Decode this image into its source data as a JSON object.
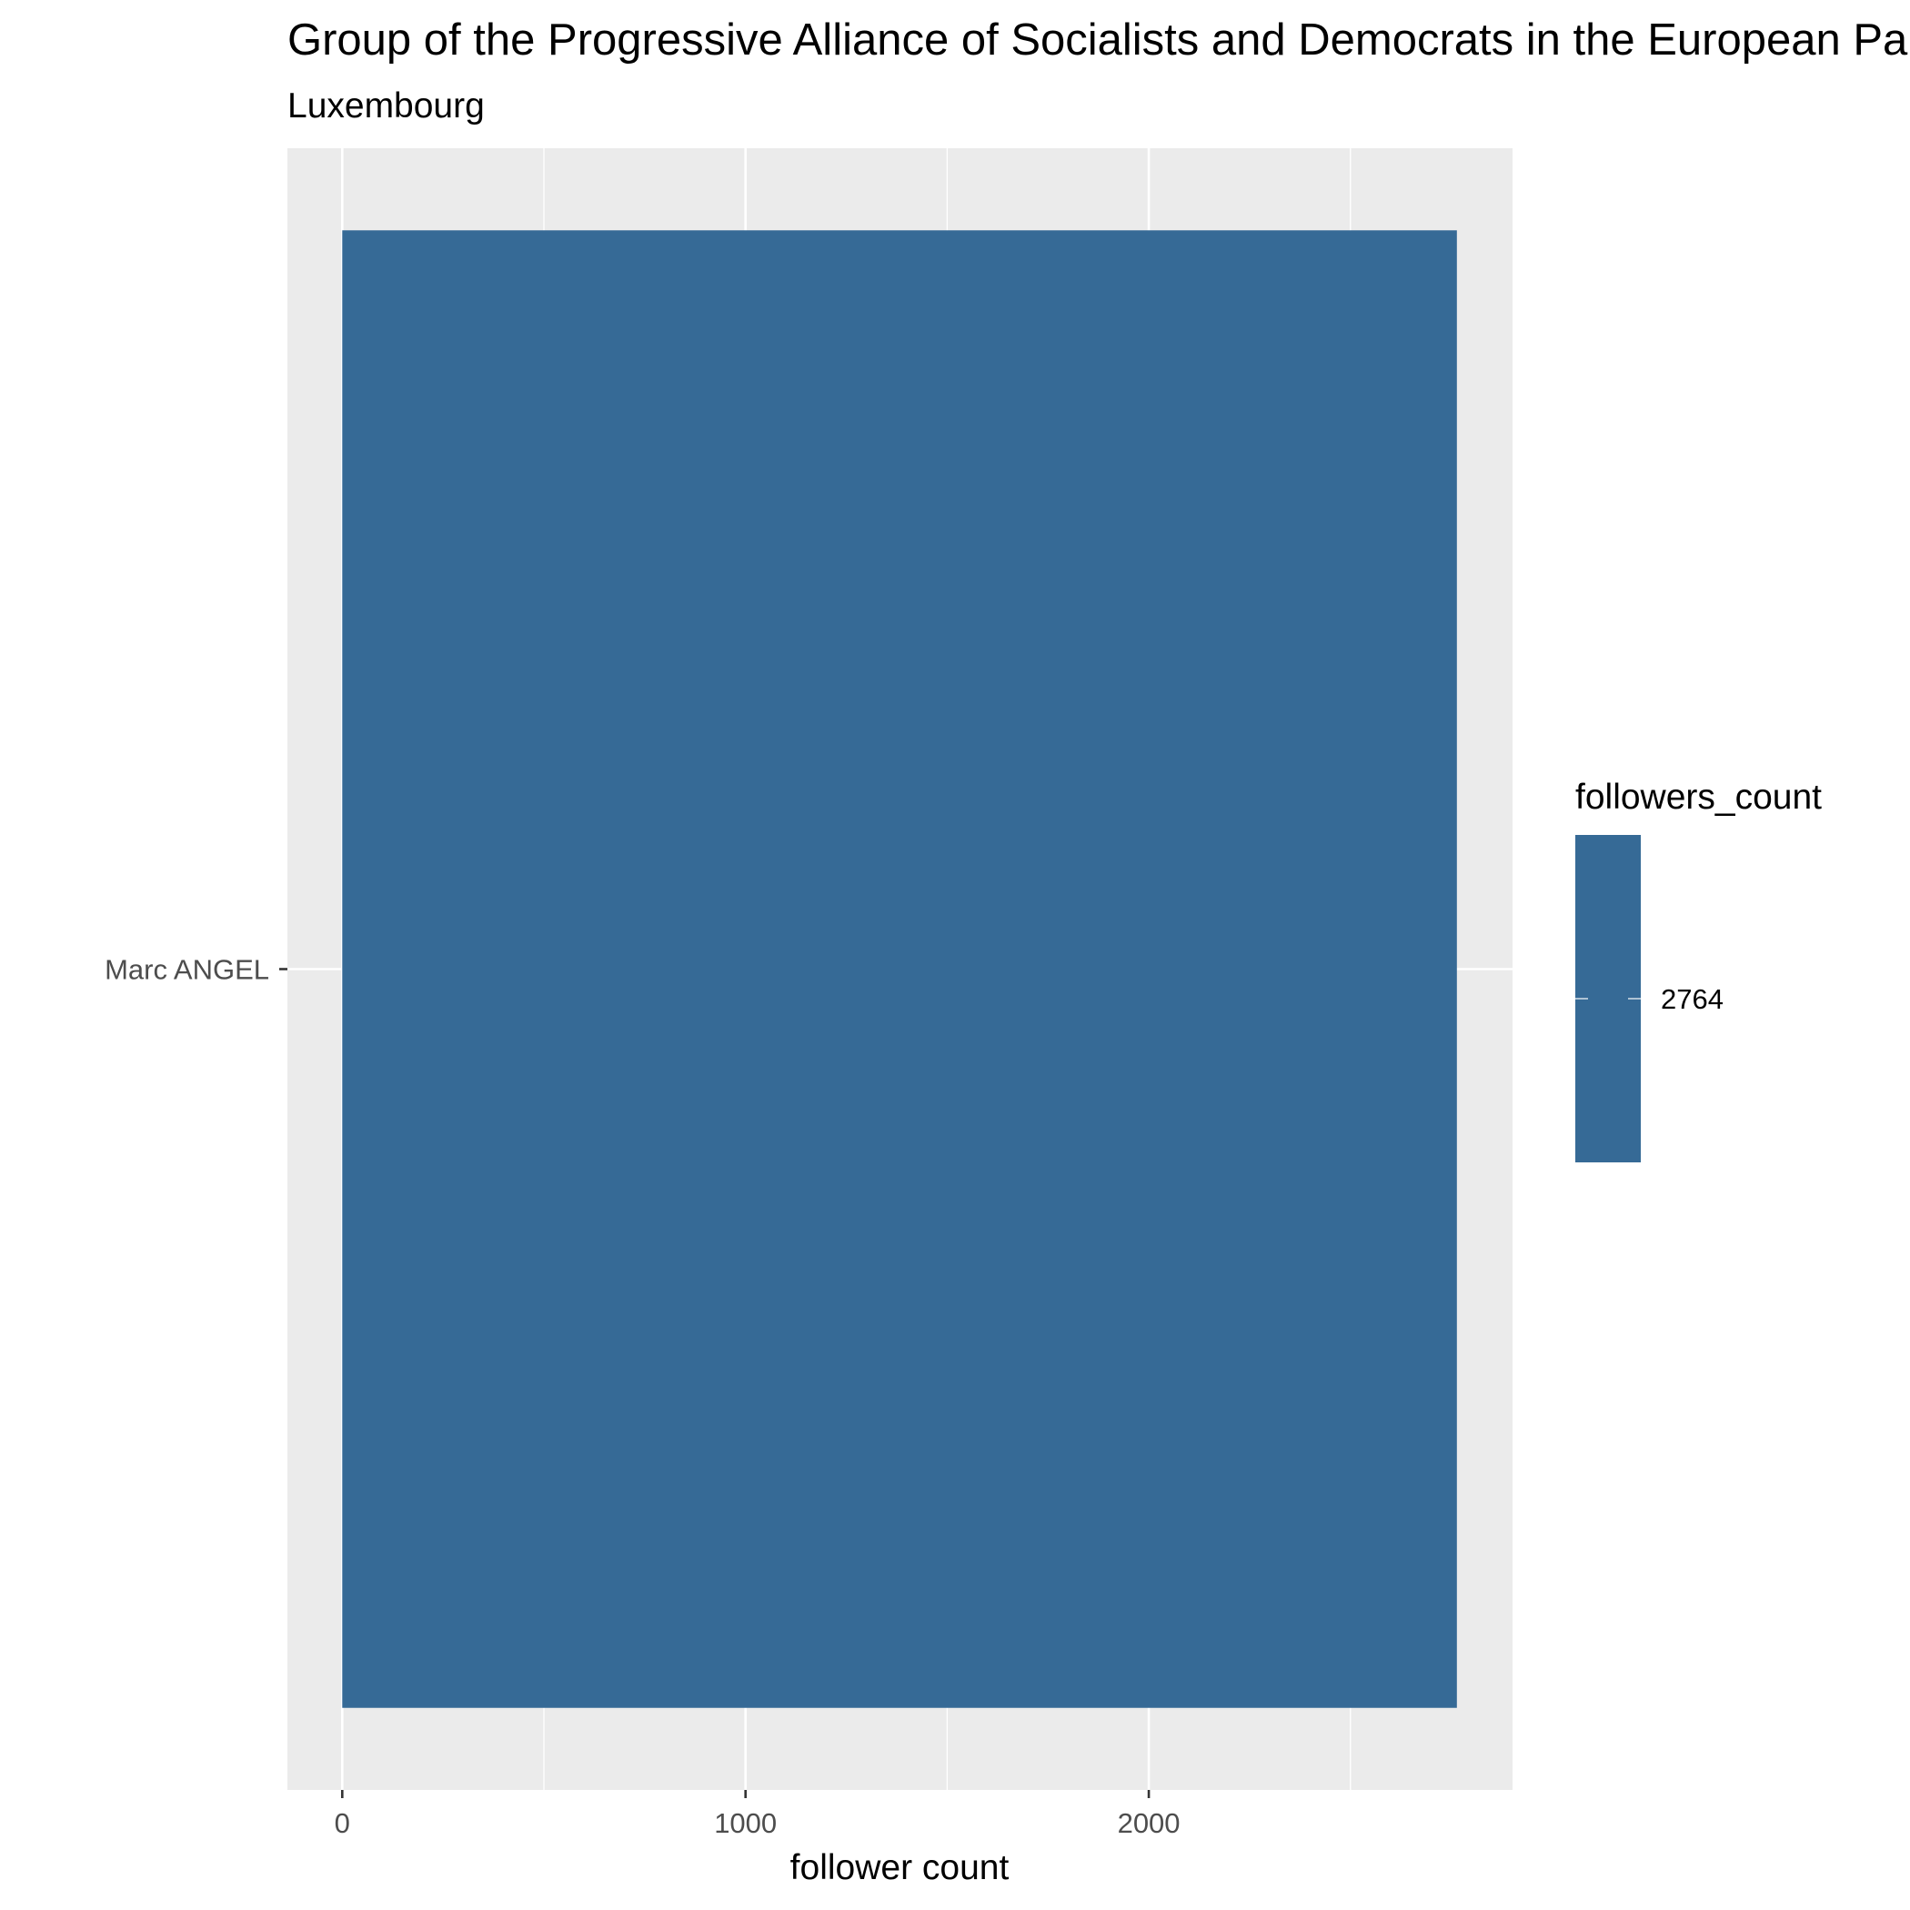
{
  "chart_data": {
    "type": "bar",
    "orientation": "horizontal",
    "title": "Group of the Progressive Alliance of Socialists and Democrats in the European Parliament",
    "subtitle": "Luxembourg",
    "categories": [
      "Marc ANGEL"
    ],
    "values": [
      2764
    ],
    "xlabel": "follower count",
    "ylabel": "",
    "xlim": [
      -136,
      2902
    ],
    "x_ticks": [
      0,
      1000,
      2000
    ],
    "x_tick_labels": [
      "0",
      "1000",
      "2000"
    ],
    "grid": true,
    "legend": {
      "title": "followers_count",
      "labels": [
        "2764"
      ],
      "placement": "right"
    },
    "colors": {
      "bar": "#366A96",
      "panel": "#EBEBEB",
      "grid": "#FFFFFF"
    }
  }
}
